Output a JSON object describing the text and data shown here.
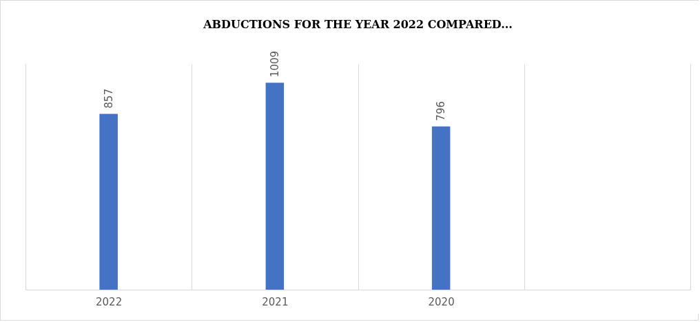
{
  "chart_data": {
    "type": "bar",
    "title": "ABDUCTIONS FOR THE YEAR 2022 COMPARED...",
    "categories": [
      "2022",
      "2021",
      "2020",
      null
    ],
    "values": [
      857,
      1009,
      796,
      null
    ],
    "color": "#4472c4",
    "data_labels": true,
    "grid": "x"
  }
}
